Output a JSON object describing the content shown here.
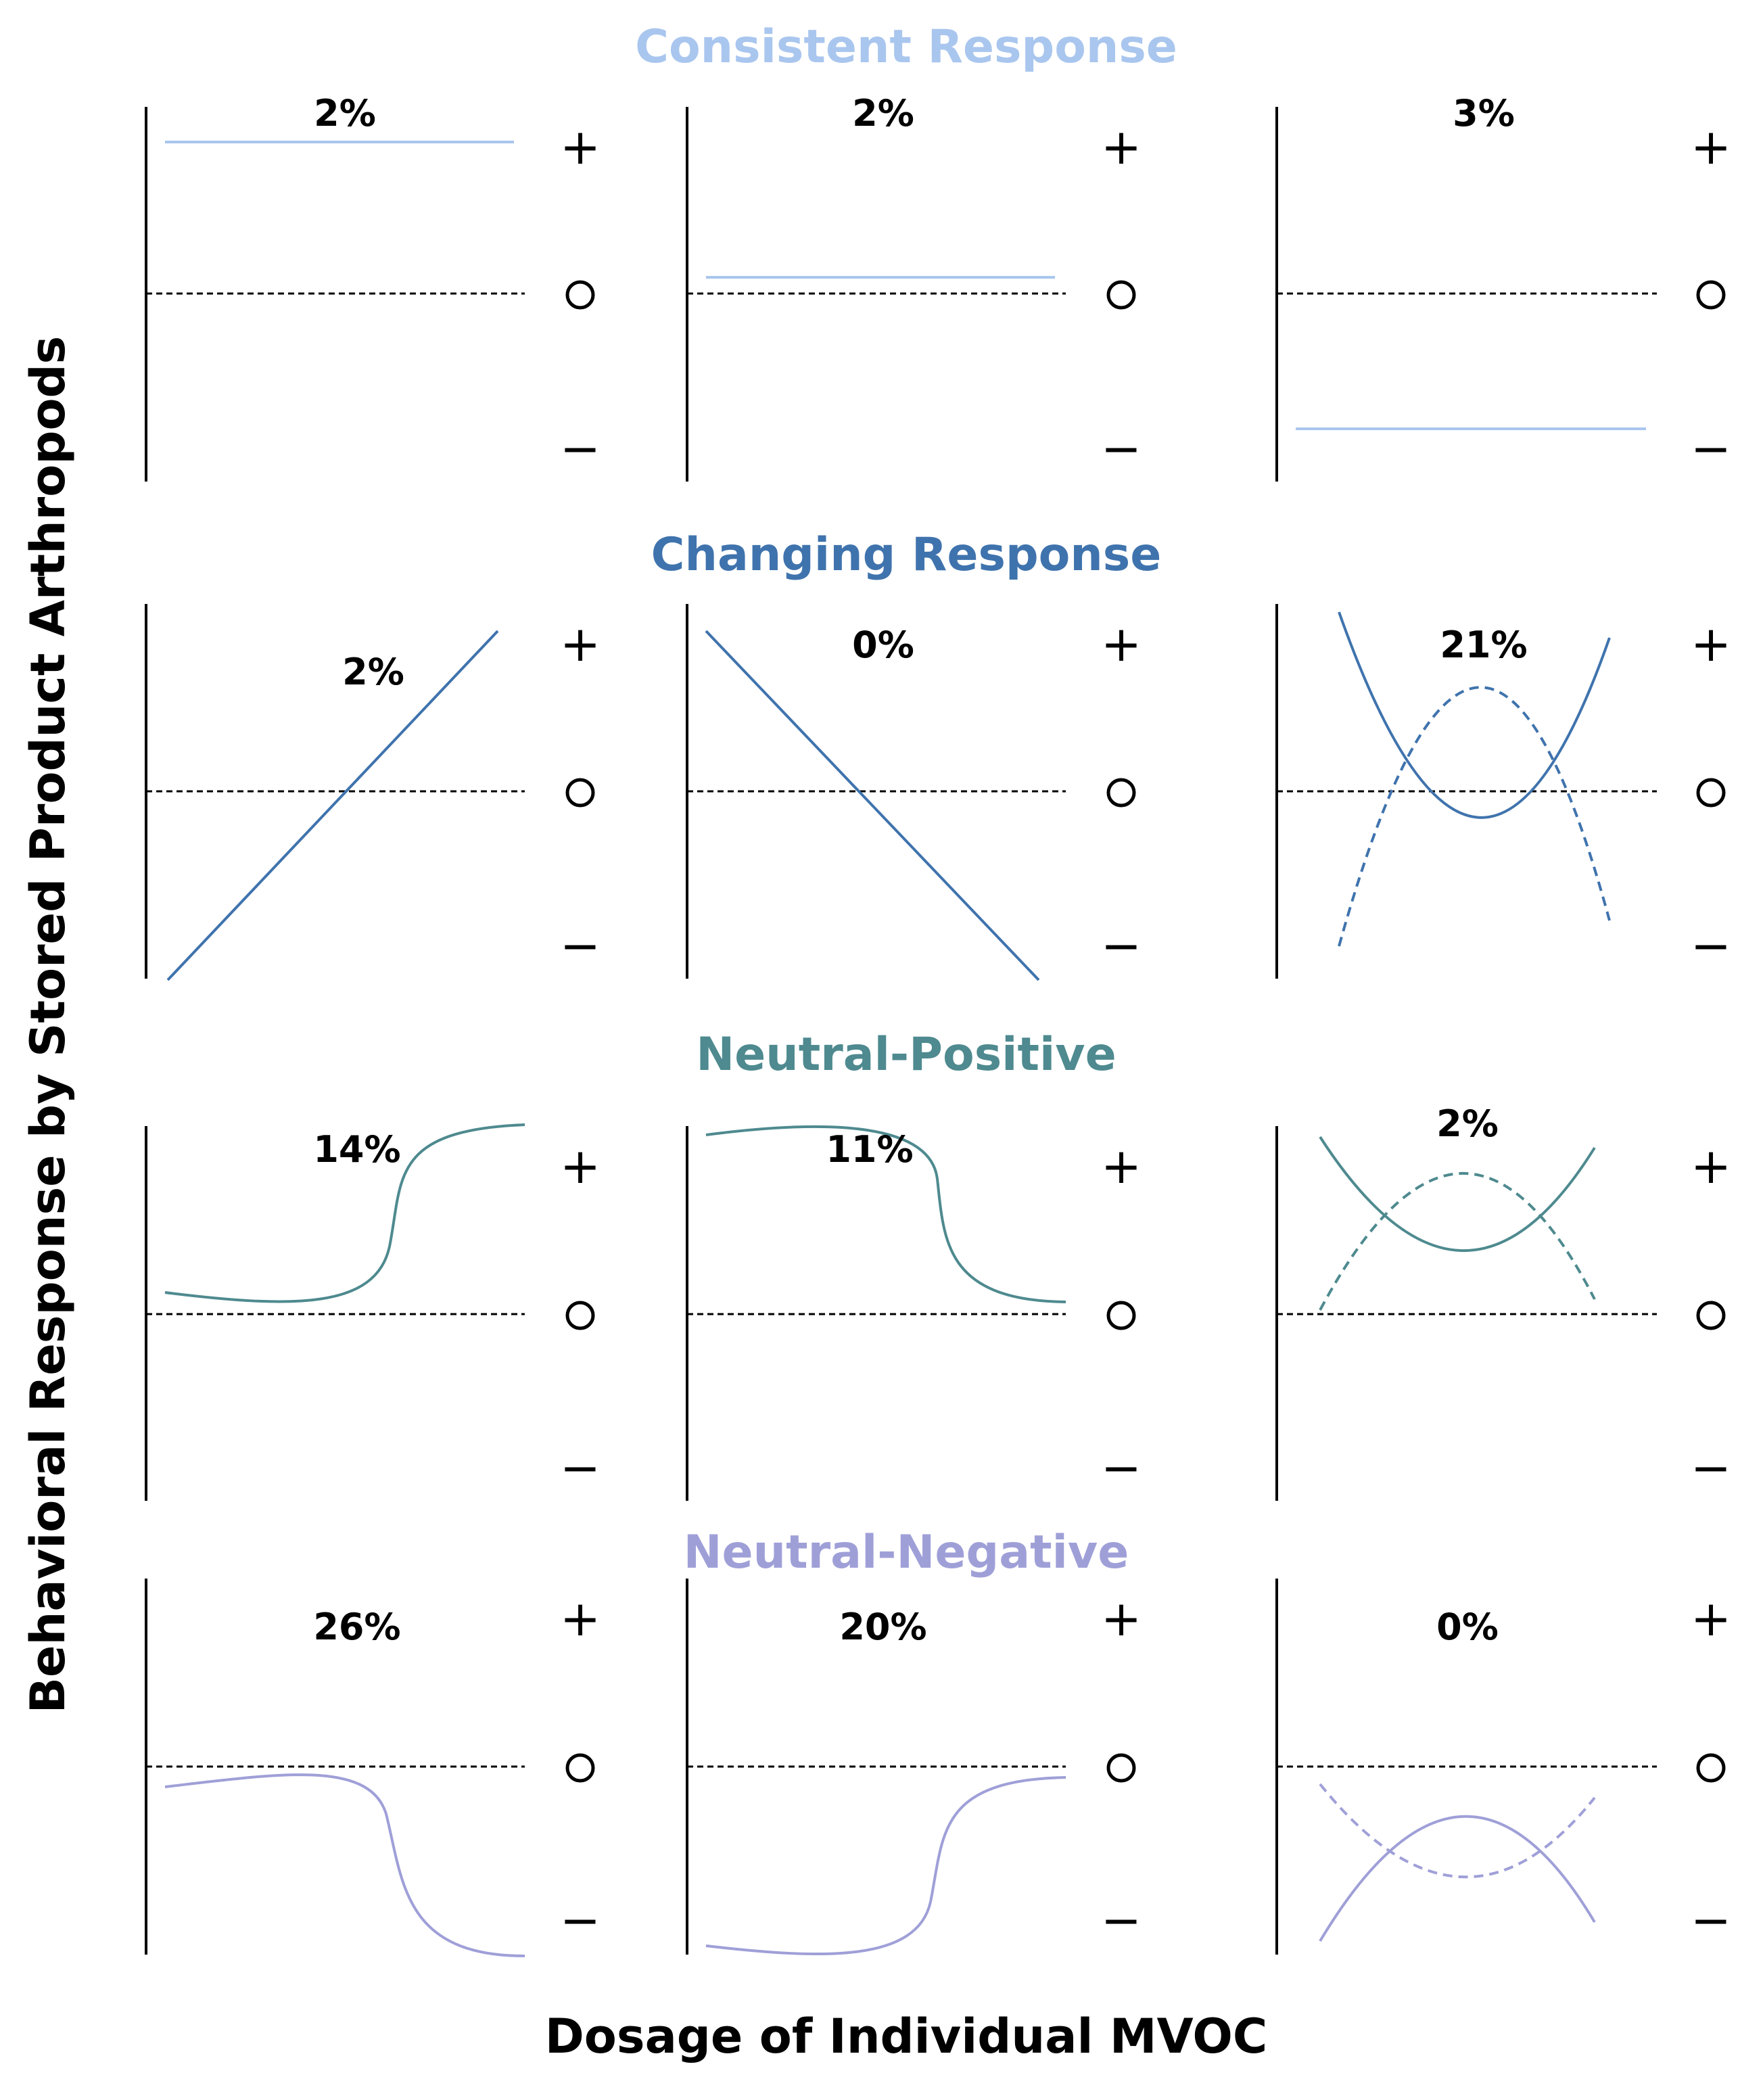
{
  "figure": {
    "y_axis_label": "Behavioral Response by Stored Product Arthropods",
    "x_axis_label": "Dosage of Individual MVOC",
    "symbols": {
      "plus": "+",
      "neutral": "O",
      "minus": "−"
    }
  },
  "sections": [
    {
      "title": "Consistent Response",
      "color": "#a9c6ee",
      "panels": [
        {
          "percent": "2%",
          "shape": "flat-high"
        },
        {
          "percent": "2%",
          "shape": "flat-slight"
        },
        {
          "percent": "3%",
          "shape": "flat-low"
        }
      ]
    },
    {
      "title": "Changing Response",
      "color": "#3f73ad",
      "panels": [
        {
          "percent": "2%",
          "shape": "rising-line"
        },
        {
          "percent": "0%",
          "shape": "falling-line"
        },
        {
          "percent": "21%",
          "shape": "u-and-inverted-u"
        }
      ]
    },
    {
      "title": "Neutral-Positive",
      "color": "#4e8a8f",
      "panels": [
        {
          "percent": "14%",
          "shape": "sigmoid-up"
        },
        {
          "percent": "11%",
          "shape": "sigmoid-down"
        },
        {
          "percent": "2%",
          "shape": "u-and-inverted-u-positive"
        }
      ]
    },
    {
      "title": "Neutral-Negative",
      "color": "#9f9fd8",
      "panels": [
        {
          "percent": "26%",
          "shape": "sigmoid-down-negative"
        },
        {
          "percent": "20%",
          "shape": "sigmoid-up-negative"
        },
        {
          "percent": "0%",
          "shape": "u-and-inverted-u-negative"
        }
      ]
    }
  ]
}
